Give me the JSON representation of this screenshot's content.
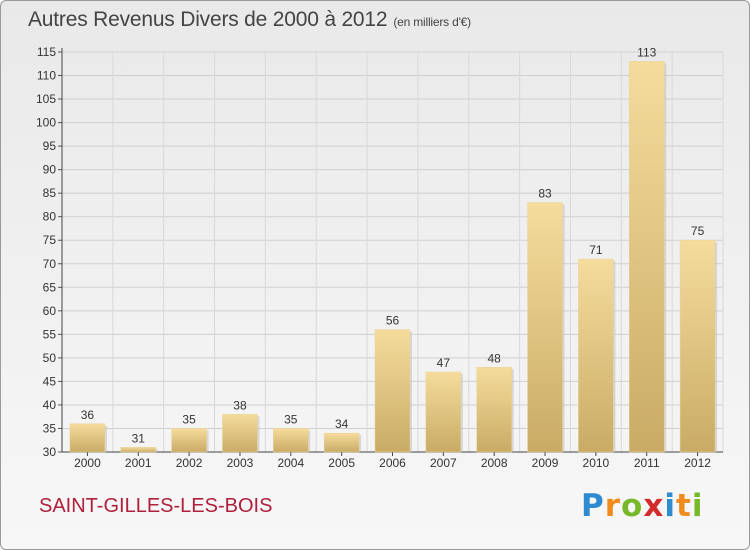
{
  "page": {
    "title": "Autres Revenus Divers de 2000 à 2012",
    "title_unit": "(en milliers d'€)",
    "place": "SAINT-GILLES-LES-BOIS",
    "brand_letters": [
      "P",
      "r",
      "o",
      "x",
      "i",
      "t",
      "i"
    ],
    "brand_colors": [
      "#2e8bd0",
      "#f08c1e",
      "#77b82a",
      "#d42c2c",
      "#2e8bd0",
      "#f08c1e",
      "#77b82a"
    ]
  },
  "chart_data": {
    "type": "bar",
    "categories": [
      "2000",
      "2001",
      "2002",
      "2003",
      "2004",
      "2005",
      "2006",
      "2007",
      "2008",
      "2009",
      "2010",
      "2011",
      "2012"
    ],
    "values": [
      36,
      31,
      35,
      38,
      35,
      34,
      56,
      47,
      48,
      83,
      71,
      113,
      75
    ],
    "ylim": [
      30,
      115
    ],
    "yticks": [
      30,
      35,
      40,
      45,
      50,
      55,
      60,
      65,
      70,
      75,
      80,
      85,
      90,
      95,
      100,
      105,
      110,
      115
    ],
    "grid": true,
    "bar_color": "#e6c97c"
  }
}
